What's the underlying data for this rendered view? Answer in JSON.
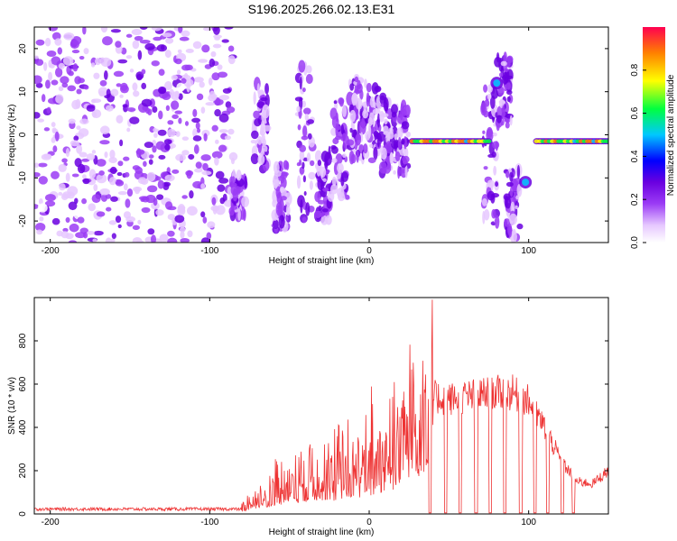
{
  "page": {
    "title": "S196.2025.266.02.13.E31"
  },
  "chart_data": [
    {
      "type": "heatmap",
      "title": "S196.2025.266.02.13.E31",
      "xlabel": "Height of straight line (km)",
      "ylabel": "Frequency (Hz)",
      "xlim": [
        -210,
        150
      ],
      "ylim": [
        -25,
        25
      ],
      "xticks": [
        -200,
        -100,
        0,
        100
      ],
      "xtick_labels": [
        "-200",
        "-100",
        "0",
        "100"
      ],
      "yticks": [
        -20,
        -10,
        0,
        10,
        20
      ],
      "ytick_labels": [
        "-20",
        "-10",
        "0",
        "10",
        "20"
      ],
      "colorbar": {
        "label": "Normalized spectral amplitude",
        "range": [
          0,
          1
        ],
        "ticks": [
          0.0,
          0.2,
          0.4,
          0.6,
          0.8
        ],
        "tick_labels": [
          "0.0",
          "0.2",
          "0.4",
          "0.6",
          "0.8"
        ],
        "colormap": [
          "#ffffff",
          "#e6c8ff",
          "#9b3cf5",
          "#6a00e0",
          "#0000ff",
          "#00c8ff",
          "#00ff40",
          "#ffff00",
          "#ff8000",
          "#ff0050"
        ]
      },
      "features": [
        {
          "name": "noise field",
          "x": [
            -210,
            -90
          ],
          "y": [
            -25,
            25
          ],
          "amplitude": 0.2
        },
        {
          "name": "spectral line",
          "x": [
            27,
            75
          ],
          "y": -1.5,
          "amplitude": 0.95
        },
        {
          "name": "spectral line",
          "x": [
            105,
            150
          ],
          "y": -1.5,
          "amplitude": 0.95
        },
        {
          "name": "hot spot",
          "x": 80,
          "y": 12,
          "amplitude": 0.5
        },
        {
          "name": "hot spot",
          "x": 98,
          "y": -11,
          "amplitude": 0.55
        }
      ]
    },
    {
      "type": "line",
      "xlabel": "Height of straight line (km)",
      "ylabel": "SNR (10 * v/v)",
      "xlim": [
        -210,
        150
      ],
      "ylim": [
        0,
        1000
      ],
      "xticks": [
        -200,
        -100,
        0,
        100
      ],
      "xtick_labels": [
        "-200",
        "-100",
        "0",
        "100"
      ],
      "yticks": [
        0,
        200,
        400,
        600,
        800
      ],
      "ytick_labels": [
        "0",
        "200",
        "400",
        "600",
        "800"
      ],
      "color": "#ee3333",
      "envelope": {
        "x": [
          -210,
          -100,
          -80,
          -70,
          -60,
          -50,
          -40,
          -30,
          -20,
          -10,
          0,
          10,
          20,
          25,
          30,
          40,
          50,
          60,
          70,
          80,
          90,
          100,
          110,
          120,
          130,
          140,
          150
        ],
        "y": [
          20,
          20,
          25,
          80,
          120,
          160,
          170,
          210,
          200,
          230,
          260,
          330,
          400,
          500,
          560,
          540,
          530,
          540,
          550,
          560,
          560,
          520,
          400,
          250,
          150,
          140,
          200
        ]
      },
      "dropouts": [
        38,
        48,
        57,
        67,
        76,
        85,
        95,
        104,
        112,
        121,
        128
      ]
    }
  ]
}
